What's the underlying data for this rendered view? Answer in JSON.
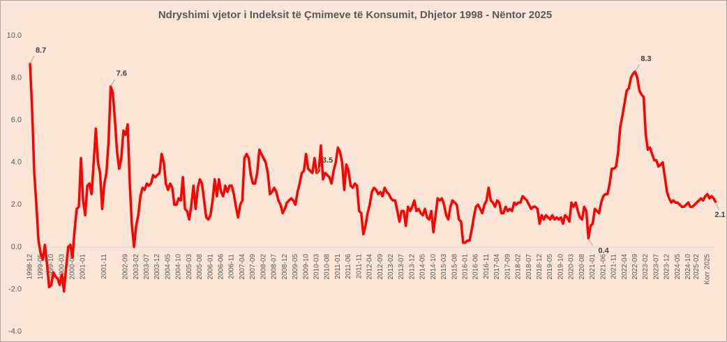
{
  "chart_data": {
    "type": "line",
    "title": "Ndryshimi vjetor i Indeksit të Çmimeve të Konsumit, Dhjetor 1998 - Nëntor 2025",
    "background": "#fbe5d6",
    "ylim": [
      -4,
      10
    ],
    "yticks": [
      {
        "value": -4,
        "label": "-4.0"
      },
      {
        "value": -2,
        "label": "-2.0"
      },
      {
        "value": 0,
        "label": "0.0"
      },
      {
        "value": 2,
        "label": "2.0"
      },
      {
        "value": 4,
        "label": "4.0"
      },
      {
        "value": 6,
        "label": "6.0"
      },
      {
        "value": 8,
        "label": "8.0"
      },
      {
        "value": 10,
        "label": "10.0"
      }
    ],
    "grid": false,
    "categories": [
      "1998-12",
      null,
      null,
      null,
      null,
      "1999-05",
      null,
      null,
      null,
      null,
      "1999-10",
      null,
      null,
      null,
      null,
      "2000-03",
      null,
      null,
      null,
      null,
      "2000-08",
      null,
      null,
      null,
      null,
      "2001-01",
      null,
      null,
      null,
      null,
      null,
      null,
      null,
      null,
      null,
      "2001-11",
      null,
      null,
      null,
      null,
      null,
      null,
      null,
      null,
      null,
      "2002-09",
      null,
      null,
      null,
      null,
      "2003-02",
      null,
      null,
      null,
      null,
      "2003-07",
      null,
      null,
      null,
      null,
      "2003-12",
      null,
      null,
      null,
      null,
      "2004-05",
      null,
      null,
      null,
      null,
      "2004-10",
      null,
      null,
      null,
      null,
      "2005-03",
      null,
      null,
      null,
      null,
      "2005-08",
      null,
      null,
      null,
      null,
      "2006-01",
      null,
      null,
      null,
      null,
      "2006-06",
      null,
      null,
      null,
      null,
      "2006-11",
      null,
      null,
      null,
      null,
      "2007-04",
      null,
      null,
      null,
      null,
      "2007-09",
      null,
      null,
      null,
      null,
      "2008-02",
      null,
      null,
      null,
      null,
      "2008-07",
      null,
      null,
      null,
      null,
      "2008-12",
      null,
      null,
      null,
      null,
      "2009-05",
      null,
      null,
      null,
      null,
      "2009-10",
      null,
      null,
      null,
      null,
      "2010-03",
      null,
      null,
      null,
      null,
      "2010-08",
      null,
      null,
      null,
      null,
      "2011-01",
      null,
      null,
      null,
      null,
      "2011-06",
      null,
      null,
      null,
      null,
      "2011-11",
      null,
      null,
      null,
      null,
      "2012-04",
      null,
      null,
      null,
      null,
      "2012-09",
      null,
      null,
      null,
      null,
      "2013-02",
      null,
      null,
      null,
      null,
      "2013-07",
      null,
      null,
      null,
      null,
      "2013-12",
      null,
      null,
      null,
      null,
      "2014-05",
      null,
      null,
      null,
      null,
      "2014-10",
      null,
      null,
      null,
      null,
      "2015-03",
      null,
      null,
      null,
      null,
      "2015-08",
      null,
      null,
      null,
      null,
      "2016-01",
      null,
      null,
      null,
      null,
      "2016-06",
      null,
      null,
      null,
      null,
      "2016-11",
      null,
      null,
      null,
      null,
      "2017-04",
      null,
      null,
      null,
      null,
      "2017-09",
      null,
      null,
      null,
      null,
      "2018-02",
      null,
      null,
      null,
      null,
      "2018-07",
      null,
      null,
      null,
      null,
      "2018-12",
      null,
      null,
      null,
      null,
      "2019-05",
      null,
      null,
      null,
      null,
      "2019-10",
      null,
      null,
      null,
      null,
      "2020-03",
      null,
      null,
      null,
      null,
      "2020-08",
      null,
      null,
      null,
      null,
      "2021-01",
      null,
      null,
      null,
      null,
      "2021-06",
      null,
      null,
      null,
      null,
      "2021-11",
      null,
      null,
      null,
      null,
      "2022-04",
      null,
      null,
      null,
      null,
      "2022-09",
      null,
      null,
      null,
      null,
      "2023-02",
      null,
      null,
      null,
      null,
      "2023-07",
      null,
      null,
      null,
      null,
      "2023-12",
      null,
      null,
      null,
      null,
      "2024-05",
      null,
      null,
      null,
      null,
      "2024-10",
      null,
      null,
      null,
      "2025-02",
      null,
      null,
      null,
      null,
      "Korr 2025",
      null,
      null,
      null,
      null
    ],
    "series": [
      {
        "color": "#ff0000",
        "values": [
          8.7,
          6.5,
          3.5,
          2.0,
          0.3,
          -0.3,
          -0.6,
          0.1,
          -0.8,
          -1.9,
          -1.8,
          -1.2,
          -1.4,
          -1.5,
          -1.8,
          -1.3,
          -2.1,
          -1.0,
          0.0,
          0.1,
          -0.5,
          0.8,
          1.8,
          1.9,
          4.2,
          2.2,
          1.5,
          2.9,
          3.0,
          2.5,
          4.0,
          5.6,
          4.0,
          3.5,
          1.8,
          3.0,
          3.5,
          5.0,
          7.6,
          7.3,
          6.0,
          4.5,
          3.7,
          4.2,
          5.5,
          5.3,
          5.8,
          3.0,
          1.0,
          0.0,
          1.0,
          1.5,
          2.4,
          2.8,
          2.7,
          3.0,
          2.9,
          3.0,
          3.4,
          3.3,
          3.4,
          3.5,
          4.4,
          4.0,
          3.0,
          2.7,
          3.0,
          2.8,
          2.0,
          2.0,
          2.3,
          2.2,
          3.3,
          1.8,
          1.7,
          1.3,
          2.0,
          2.9,
          1.8,
          2.8,
          3.2,
          3.0,
          2.2,
          1.4,
          1.3,
          1.5,
          2.2,
          3.2,
          2.4,
          3.2,
          2.6,
          2.4,
          2.9,
          2.6,
          2.9,
          2.9,
          2.5,
          1.9,
          1.4,
          2.0,
          2.2,
          4.2,
          4.4,
          4.2,
          3.4,
          3.0,
          3.0,
          3.5,
          4.6,
          4.4,
          4.2,
          4.0,
          3.5,
          2.5,
          2.6,
          2.8,
          2.6,
          2.2,
          2.0,
          1.6,
          1.8,
          2.1,
          2.2,
          2.3,
          2.2,
          2.0,
          2.6,
          3.0,
          3.5,
          3.6,
          4.4,
          3.7,
          3.6,
          3.5,
          4.2,
          3.5,
          3.6,
          4.8,
          3.2,
          3.5,
          3.4,
          3.3,
          3.0,
          3.6,
          4.0,
          4.7,
          4.5,
          4.0,
          2.7,
          3.9,
          3.6,
          2.9,
          2.8,
          3.0,
          2.9,
          1.7,
          1.6,
          0.6,
          1.0,
          1.6,
          2.0,
          2.6,
          2.8,
          2.7,
          2.5,
          2.6,
          2.4,
          2.8,
          2.6,
          2.5,
          2.3,
          2.2,
          2.2,
          1.7,
          1.2,
          1.7,
          1.7,
          1.0,
          1.9,
          1.7,
          1.9,
          2.2,
          1.7,
          1.8,
          1.6,
          1.5,
          1.8,
          1.4,
          1.3,
          1.7,
          0.7,
          1.5,
          2.3,
          2.2,
          2.3,
          2.0,
          1.5,
          1.3,
          1.9,
          2.2,
          2.1,
          2.0,
          1.3,
          1.2,
          0.2,
          0.2,
          0.3,
          0.3,
          0.8,
          1.4,
          1.9,
          2.0,
          1.8,
          1.6,
          2.0,
          2.2,
          2.8,
          2.2,
          2.1,
          1.9,
          2.2,
          2.1,
          1.6,
          1.6,
          1.9,
          1.7,
          1.8,
          1.7,
          2.1,
          2.0,
          2.1,
          2.1,
          2.4,
          2.3,
          2.2,
          2.0,
          1.8,
          1.9,
          1.9,
          1.8,
          1.1,
          1.5,
          1.3,
          1.5,
          1.4,
          1.3,
          1.5,
          1.3,
          1.4,
          1.3,
          1.4,
          1.1,
          1.5,
          1.4,
          1.2,
          2.1,
          1.9,
          2.1,
          1.7,
          1.4,
          1.3,
          1.9,
          1.7,
          0.4,
          1.0,
          1.1,
          1.8,
          1.7,
          1.6,
          2.1,
          2.4,
          2.5,
          2.5,
          3.0,
          3.7,
          3.7,
          3.8,
          4.5,
          5.7,
          6.2,
          6.8,
          7.4,
          7.5,
          8.0,
          8.2,
          8.3,
          8.0,
          7.4,
          7.2,
          7.1,
          5.3,
          4.6,
          4.7,
          4.4,
          4.1,
          4.1,
          3.8,
          3.9,
          4.0,
          3.3,
          2.6,
          2.3,
          2.1,
          2.2,
          2.1,
          2.1,
          2.0,
          1.9,
          1.9,
          2.0,
          2.1,
          1.9,
          1.9,
          2.0,
          2.1,
          2.2,
          2.3,
          2.2,
          2.4,
          2.5,
          2.3,
          2.4,
          2.3,
          2.1
        ],
        "value_labels": [
          "8.7",
          null,
          null,
          null,
          null,
          null,
          null,
          null,
          null,
          null,
          null,
          null,
          null,
          null,
          null,
          null,
          null,
          null,
          null,
          null,
          null,
          null,
          null,
          null,
          null,
          null,
          null,
          null,
          null,
          null,
          null,
          null,
          null,
          null,
          null,
          null,
          null,
          null,
          "7.6",
          null,
          null,
          null,
          null,
          null,
          null,
          null,
          null,
          null,
          null,
          null,
          null,
          null,
          null,
          null,
          null,
          null,
          null,
          null,
          null,
          null,
          null,
          null,
          null,
          null,
          null,
          null,
          null,
          null,
          null,
          null,
          null,
          null,
          null,
          null,
          null,
          null,
          null,
          null,
          null,
          null,
          null,
          null,
          null,
          null,
          null,
          null,
          null,
          null,
          null,
          null,
          null,
          null,
          null,
          null,
          null,
          null,
          null,
          null,
          null,
          null,
          null,
          null,
          null,
          null,
          null,
          null,
          null,
          null,
          null,
          null,
          null,
          null,
          null,
          null,
          null,
          null,
          null,
          null,
          null,
          null,
          null,
          null,
          null,
          null,
          null,
          null,
          null,
          null,
          null,
          null,
          null,
          null,
          null,
          null,
          null,
          "3.5",
          null,
          null,
          null,
          null,
          null,
          null,
          null,
          null,
          null,
          null,
          null,
          null,
          null,
          null,
          null,
          null,
          null,
          null,
          null,
          null,
          null,
          null,
          null,
          null,
          null,
          null,
          null,
          null,
          null,
          null,
          null,
          null,
          null,
          null,
          null,
          null,
          null,
          null,
          null,
          null,
          null,
          null,
          null,
          null,
          null,
          null,
          null,
          null,
          null,
          null,
          null,
          null,
          null,
          null,
          null,
          null,
          null,
          null,
          null,
          null,
          null,
          null,
          null,
          null,
          null,
          null,
          null,
          null,
          null,
          null,
          null,
          null,
          null,
          null,
          null,
          null,
          null,
          null,
          null,
          null,
          null,
          null,
          null,
          null,
          null,
          null,
          null,
          null,
          null,
          null,
          null,
          null,
          null,
          null,
          null,
          null,
          null,
          null,
          null,
          null,
          null,
          null,
          null,
          null,
          null,
          null,
          null,
          null,
          null,
          null,
          null,
          null,
          null,
          null,
          null,
          null,
          null,
          null,
          null,
          null,
          null,
          null,
          null,
          null,
          null,
          null,
          null,
          "0.4",
          null,
          null,
          null,
          null,
          null,
          null,
          null,
          null,
          null,
          null,
          null,
          null,
          null,
          null,
          null,
          null,
          null,
          null,
          null,
          null,
          null,
          "8.3",
          null,
          null,
          null,
          null,
          null,
          null,
          null,
          null,
          null,
          null,
          null,
          null,
          null,
          null,
          null,
          null,
          null,
          null,
          null,
          null,
          null,
          null,
          null,
          null,
          null,
          null,
          null,
          null,
          null,
          null,
          null,
          null,
          null,
          null,
          null,
          null,
          null,
          "2.1"
        ]
      }
    ]
  }
}
